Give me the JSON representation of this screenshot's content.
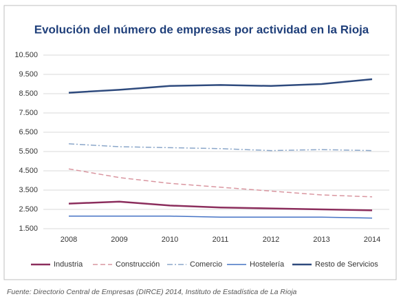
{
  "chart_data": {
    "type": "line",
    "title": "Evolución del número de empresas por actividad en la Rioja",
    "categories": [
      "2008",
      "2009",
      "2010",
      "2011",
      "2012",
      "2013",
      "2014"
    ],
    "series": [
      {
        "name": "Industria",
        "color": "#8b2d5c",
        "style": "solid",
        "linewidth": 2.5,
        "values": [
          2800,
          2900,
          2700,
          2600,
          2550,
          2500,
          2450
        ]
      },
      {
        "name": "Construcción",
        "color": "#d9959f",
        "style": "dashed",
        "linewidth": 1.5,
        "values": [
          4600,
          4150,
          3850,
          3650,
          3450,
          3250,
          3150
        ]
      },
      {
        "name": "Comercio",
        "color": "#8aa6c9",
        "style": "dashdot",
        "linewidth": 1.5,
        "values": [
          5900,
          5750,
          5700,
          5650,
          5550,
          5600,
          5550
        ]
      },
      {
        "name": "Hostelería",
        "color": "#4472c4",
        "style": "solid",
        "linewidth": 1.5,
        "values": [
          2150,
          2150,
          2150,
          2100,
          2100,
          2100,
          2050
        ]
      },
      {
        "name": "Resto de Servicios",
        "color": "#2e4a7d",
        "style": "solid",
        "linewidth": 2.5,
        "values": [
          8550,
          8700,
          8900,
          8950,
          8900,
          9000,
          9250
        ]
      }
    ],
    "ylim": [
      1500,
      10500
    ],
    "yticks": [
      {
        "value": 1500,
        "label": "1.500"
      },
      {
        "value": 2500,
        "label": "2.500"
      },
      {
        "value": 3500,
        "label": "3.500"
      },
      {
        "value": 4500,
        "label": "4.500"
      },
      {
        "value": 5500,
        "label": "5.500"
      },
      {
        "value": 6500,
        "label": "6.500"
      },
      {
        "value": 7500,
        "label": "7.500"
      },
      {
        "value": 8500,
        "label": "8.500"
      },
      {
        "value": 9500,
        "label": "9.500"
      },
      {
        "value": 10500,
        "label": "10.500"
      }
    ],
    "grid": true,
    "legend": "bottom",
    "source": "Fuente: Directorio Central de Empresas (DIRCE) 2014, Instituto de Estadística de La Rioja"
  }
}
